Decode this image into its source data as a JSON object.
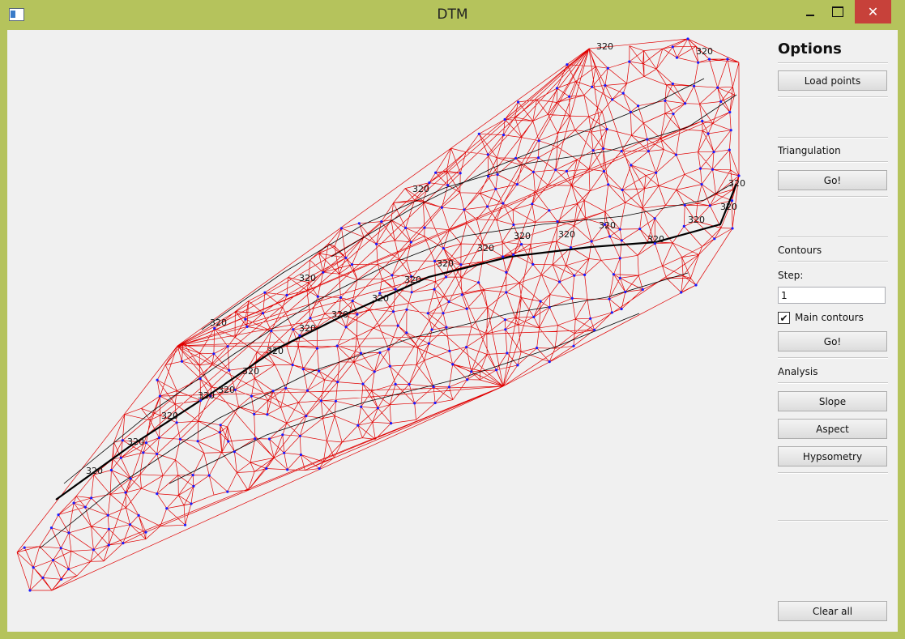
{
  "window": {
    "title": "DTM",
    "minimize_label": "",
    "maximize_label": "",
    "close_label": "✕"
  },
  "options": {
    "heading": "Options",
    "load_points_label": "Load points"
  },
  "triangulation": {
    "heading": "Triangulation",
    "go_label": "Go!"
  },
  "contours": {
    "heading": "Contours",
    "step_label": "Step:",
    "step_value": "1",
    "main_contours_label": "Main contours",
    "main_contours_checked": true,
    "check_mark": "✔",
    "go_label": "Go!"
  },
  "analysis": {
    "heading": "Analysis",
    "slope_label": "Slope",
    "aspect_label": "Aspect",
    "hypsometry_label": "Hypsometry"
  },
  "clear_all_label": "Clear all",
  "canvas": {
    "contour_label": "320",
    "colors": {
      "triangle_edge": "#e00000",
      "point": "#1a1aff",
      "contour": "#000000",
      "background": "#f0f0f0"
    }
  }
}
